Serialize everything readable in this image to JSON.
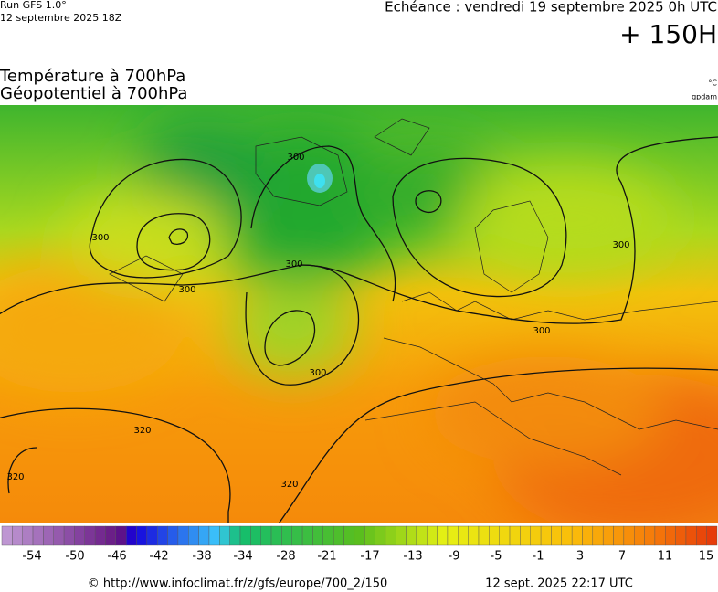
{
  "header": {
    "run": "Run GFS 1.0°",
    "run_time": "12 septembre 2025 18Z",
    "echeance": "Echéance : vendredi 19 septembre 2025 0h UTC",
    "lead": "+ 150H"
  },
  "title": {
    "line1": "Température à 700hPa",
    "line2": "Géopotentiel à 700hPa",
    "unit1": "°C",
    "unit2": "gpdam"
  },
  "contour_labels": [
    "300",
    "300",
    "300",
    "300",
    "300",
    "300",
    "300",
    "320",
    "320",
    "320"
  ],
  "colorbar": {
    "labels": [
      "-54",
      "-50",
      "-46",
      "-42",
      "-38",
      "-34",
      "-28",
      "-21",
      "-17",
      "-13",
      "-9",
      "-5",
      "-1",
      "3",
      "7",
      "11",
      "15"
    ]
  },
  "footer": {
    "url": "© http://www.infoclimat.fr/z/gfs/europe/700_2/150",
    "timestamp": "12 sept. 2025 22:17 UTC"
  }
}
